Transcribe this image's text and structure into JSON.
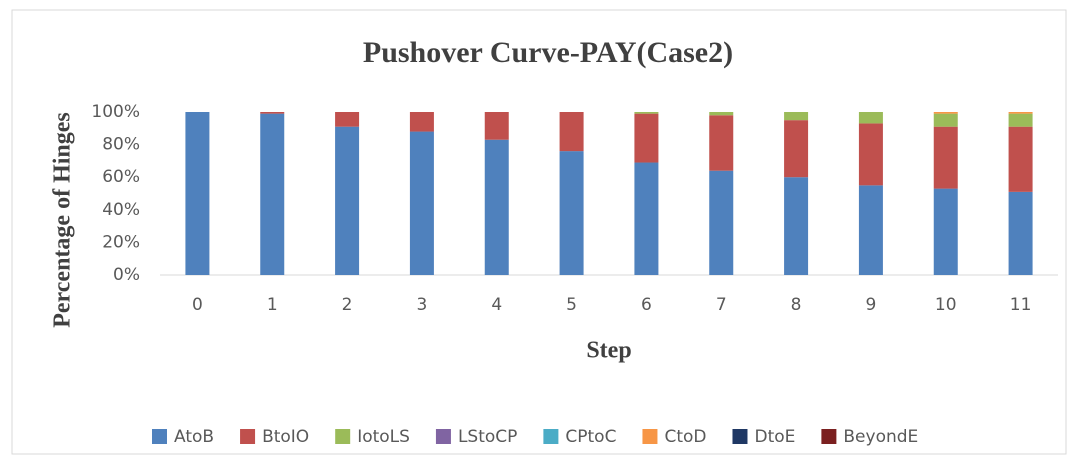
{
  "chart_data": {
    "type": "stacked_bar",
    "title": "Pushover Curve-PAY(Case2)",
    "x_label": "Step",
    "y_label": "Percentage of Hinges",
    "categories": [
      "0",
      "1",
      "2",
      "3",
      "4",
      "5",
      "6",
      "7",
      "8",
      "9",
      "10",
      "11"
    ],
    "series": [
      {
        "name": "AtoB",
        "color": "#4f81bd",
        "values": [
          100,
          99,
          91,
          88,
          83,
          76,
          69,
          64,
          60,
          55,
          53,
          51
        ]
      },
      {
        "name": "BtoIO",
        "color": "#c0504d",
        "values": [
          0,
          1,
          9,
          12,
          17,
          24,
          30,
          34,
          35,
          38,
          38,
          40
        ]
      },
      {
        "name": "IotoLS",
        "color": "#9bbb59",
        "values": [
          0,
          0,
          0,
          0,
          0,
          0,
          1,
          2,
          5,
          7,
          8,
          8
        ]
      },
      {
        "name": "LStoCP",
        "color": "#8064a2",
        "values": [
          0,
          0,
          0,
          0,
          0,
          0,
          0,
          0,
          0,
          0,
          0,
          0
        ]
      },
      {
        "name": "CPtoC",
        "color": "#4bacc6",
        "values": [
          0,
          0,
          0,
          0,
          0,
          0,
          0,
          0,
          0,
          0,
          0,
          0
        ]
      },
      {
        "name": "CtoD",
        "color": "#f79646",
        "values": [
          0,
          0,
          0,
          0,
          0,
          0,
          0,
          0,
          0,
          0,
          1,
          1
        ]
      },
      {
        "name": "DtoE",
        "color": "#1f3864",
        "values": [
          0,
          0,
          0,
          0,
          0,
          0,
          0,
          0,
          0,
          0,
          0,
          0
        ]
      },
      {
        "name": "BeyondE",
        "color": "#7b2020",
        "values": [
          0,
          0,
          0,
          0,
          0,
          0,
          0,
          0,
          0,
          0,
          0,
          0
        ]
      }
    ],
    "ylim": [
      0,
      100
    ],
    "yticks": [
      {
        "value": 0,
        "label": "0%"
      },
      {
        "value": 20,
        "label": "20%"
      },
      {
        "value": 40,
        "label": "40%"
      },
      {
        "value": 60,
        "label": "60%"
      },
      {
        "value": 80,
        "label": "80%"
      },
      {
        "value": 100,
        "label": "100%"
      }
    ],
    "grid": false,
    "legend": "bottom"
  }
}
